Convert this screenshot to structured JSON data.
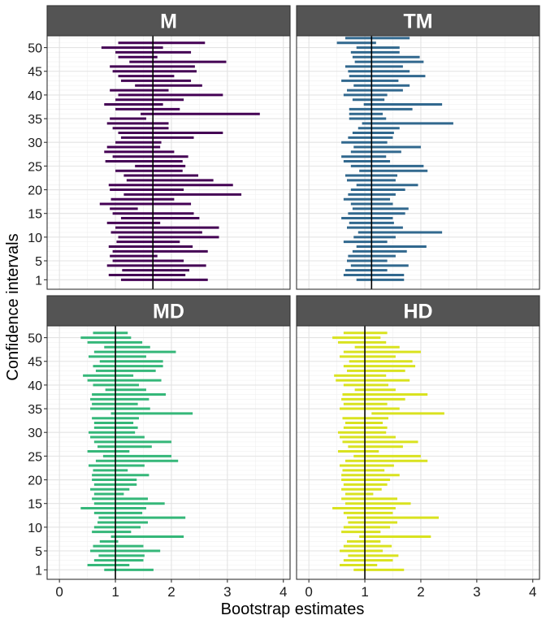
{
  "chart_data": {
    "type": "interval",
    "xlabel": "Bootstrap estimates",
    "ylabel": "Confidence intervals",
    "xlim": [
      0,
      4
    ],
    "ylim": [
      1,
      50
    ],
    "x_ticks": [
      0,
      1,
      2,
      3,
      4
    ],
    "y_ticks": [
      1,
      5,
      10,
      15,
      20,
      25,
      30,
      35,
      40,
      45,
      50
    ],
    "grid": true,
    "layout": "2x2 facet grid",
    "panels": [
      {
        "name": "M",
        "color": "#440154",
        "reference_line": 1.67,
        "intervals": [
          [
            1.1,
            2.65
          ],
          [
            0.88,
            2.25
          ],
          [
            1.12,
            2.32
          ],
          [
            0.85,
            2.62
          ],
          [
            0.95,
            2.22
          ],
          [
            0.9,
            1.75
          ],
          [
            0.95,
            2.65
          ],
          [
            0.88,
            2.38
          ],
          [
            1.02,
            2.15
          ],
          [
            1.05,
            2.85
          ],
          [
            0.92,
            2.55
          ],
          [
            1.0,
            2.85
          ],
          [
            0.85,
            1.8
          ],
          [
            1.1,
            2.5
          ],
          [
            0.95,
            2.4
          ],
          [
            0.9,
            1.4
          ],
          [
            0.72,
            2.35
          ],
          [
            0.92,
            2.05
          ],
          [
            1.15,
            3.25
          ],
          [
            0.9,
            2.22
          ],
          [
            0.88,
            3.1
          ],
          [
            1.2,
            2.75
          ],
          [
            1.15,
            2.48
          ],
          [
            1.0,
            2.2
          ],
          [
            1.35,
            2.25
          ],
          [
            0.82,
            2.2
          ],
          [
            0.95,
            2.3
          ],
          [
            0.8,
            2.05
          ],
          [
            0.85,
            1.8
          ],
          [
            1.0,
            1.82
          ],
          [
            1.1,
            2.4
          ],
          [
            1.05,
            2.92
          ],
          [
            0.95,
            1.95
          ],
          [
            0.85,
            1.95
          ],
          [
            0.9,
            1.55
          ],
          [
            1.45,
            3.58
          ],
          [
            1.0,
            2.15
          ],
          [
            0.8,
            1.85
          ],
          [
            1.0,
            2.22
          ],
          [
            1.05,
            2.92
          ],
          [
            0.9,
            1.95
          ],
          [
            1.35,
            2.55
          ],
          [
            1.1,
            2.35
          ],
          [
            1.05,
            2.05
          ],
          [
            0.95,
            2.45
          ],
          [
            0.9,
            2.42
          ],
          [
            1.25,
            2.98
          ],
          [
            1.05,
            1.75
          ],
          [
            1.0,
            2.35
          ],
          [
            0.75,
            1.85
          ],
          [
            1.05,
            2.6
          ]
        ]
      },
      {
        "name": "TM",
        "color": "#31688E",
        "reference_line": 1.12,
        "intervals": [
          [
            0.85,
            1.7
          ],
          [
            0.62,
            1.7
          ],
          [
            0.65,
            1.4
          ],
          [
            0.75,
            1.78
          ],
          [
            0.68,
            1.4
          ],
          [
            0.7,
            1.55
          ],
          [
            0.78,
            1.75
          ],
          [
            0.85,
            2.1
          ],
          [
            0.62,
            1.4
          ],
          [
            0.8,
            1.55
          ],
          [
            0.88,
            2.38
          ],
          [
            0.68,
            1.68
          ],
          [
            0.72,
            1.52
          ],
          [
            0.58,
            1.5
          ],
          [
            0.7,
            1.72
          ],
          [
            0.78,
            1.78
          ],
          [
            0.75,
            1.5
          ],
          [
            0.62,
            1.45
          ],
          [
            0.7,
            1.55
          ],
          [
            0.75,
            1.72
          ],
          [
            0.85,
            1.95
          ],
          [
            0.68,
            1.55
          ],
          [
            0.65,
            1.58
          ],
          [
            0.9,
            2.12
          ],
          [
            0.75,
            2.05
          ],
          [
            0.62,
            1.45
          ],
          [
            0.58,
            1.38
          ],
          [
            0.75,
            1.65
          ],
          [
            0.8,
            2.0
          ],
          [
            0.58,
            1.4
          ],
          [
            0.7,
            1.5
          ],
          [
            0.78,
            1.52
          ],
          [
            0.88,
            1.62
          ],
          [
            0.95,
            2.58
          ],
          [
            0.72,
            1.38
          ],
          [
            0.72,
            1.32
          ],
          [
            0.72,
            1.85
          ],
          [
            0.98,
            2.38
          ],
          [
            0.78,
            1.35
          ],
          [
            0.62,
            1.4
          ],
          [
            0.68,
            1.68
          ],
          [
            0.8,
            1.8
          ],
          [
            0.58,
            1.6
          ],
          [
            0.72,
            2.08
          ],
          [
            0.7,
            1.8
          ],
          [
            0.65,
            1.68
          ],
          [
            0.82,
            2.05
          ],
          [
            0.78,
            1.98
          ],
          [
            0.75,
            1.62
          ],
          [
            0.85,
            1.62
          ],
          [
            0.5,
            1.2
          ],
          [
            0.65,
            1.8
          ]
        ]
      },
      {
        "name": "MD",
        "color": "#35B779",
        "reference_line": 1.0,
        "intervals": [
          [
            0.8,
            1.68
          ],
          [
            0.5,
            1.25
          ],
          [
            0.62,
            1.5
          ],
          [
            0.7,
            1.52
          ],
          [
            0.55,
            1.8
          ],
          [
            0.6,
            1.5
          ],
          [
            0.72,
            1.05
          ],
          [
            0.92,
            2.22
          ],
          [
            0.58,
            1.28
          ],
          [
            0.62,
            1.45
          ],
          [
            0.68,
            1.58
          ],
          [
            0.7,
            2.25
          ],
          [
            0.62,
            1.48
          ],
          [
            0.38,
            1.55
          ],
          [
            0.62,
            1.88
          ],
          [
            0.58,
            1.58
          ],
          [
            0.62,
            1.15
          ],
          [
            0.55,
            1.25
          ],
          [
            0.62,
            1.38
          ],
          [
            0.58,
            1.38
          ],
          [
            0.58,
            1.6
          ],
          [
            0.6,
            1.22
          ],
          [
            0.52,
            1.52
          ],
          [
            0.65,
            2.12
          ],
          [
            0.78,
            2.0
          ],
          [
            0.5,
            1.25
          ],
          [
            0.68,
            1.65
          ],
          [
            0.62,
            2.0
          ],
          [
            0.55,
            1.52
          ],
          [
            0.52,
            1.35
          ],
          [
            0.62,
            1.4
          ],
          [
            0.62,
            1.32
          ],
          [
            0.58,
            1.42
          ],
          [
            0.92,
            2.38
          ],
          [
            0.55,
            1.62
          ],
          [
            0.58,
            1.4
          ],
          [
            0.55,
            1.6
          ],
          [
            0.58,
            1.9
          ],
          [
            0.82,
            1.55
          ],
          [
            0.6,
            1.42
          ],
          [
            0.5,
            1.82
          ],
          [
            0.42,
            1.32
          ],
          [
            0.65,
            1.72
          ],
          [
            0.6,
            1.85
          ],
          [
            0.72,
            1.85
          ],
          [
            0.52,
            1.55
          ],
          [
            0.62,
            2.08
          ],
          [
            0.8,
            1.62
          ],
          [
            0.5,
            1.48
          ],
          [
            0.38,
            1.28
          ],
          [
            0.6,
            1.22
          ]
        ]
      },
      {
        "name": "HD",
        "color": "#D9E21F",
        "reference_line": 1.0,
        "intervals": [
          [
            0.8,
            1.7
          ],
          [
            0.55,
            1.22
          ],
          [
            0.62,
            1.5
          ],
          [
            0.7,
            1.6
          ],
          [
            0.55,
            1.32
          ],
          [
            0.62,
            1.48
          ],
          [
            0.68,
            1.28
          ],
          [
            0.9,
            2.18
          ],
          [
            0.58,
            1.28
          ],
          [
            0.62,
            1.45
          ],
          [
            0.7,
            1.58
          ],
          [
            0.68,
            2.32
          ],
          [
            0.62,
            1.5
          ],
          [
            0.42,
            1.55
          ],
          [
            0.65,
            1.82
          ],
          [
            0.58,
            1.58
          ],
          [
            0.65,
            1.15
          ],
          [
            0.58,
            1.3
          ],
          [
            0.62,
            1.4
          ],
          [
            0.58,
            1.45
          ],
          [
            0.58,
            1.62
          ],
          [
            0.6,
            1.35
          ],
          [
            0.55,
            1.52
          ],
          [
            0.65,
            2.12
          ],
          [
            0.8,
            2.0
          ],
          [
            0.52,
            1.25
          ],
          [
            0.7,
            1.68
          ],
          [
            0.6,
            1.95
          ],
          [
            0.55,
            1.55
          ],
          [
            0.52,
            1.38
          ],
          [
            0.62,
            1.4
          ],
          [
            0.65,
            1.32
          ],
          [
            0.6,
            1.42
          ],
          [
            1.12,
            2.42
          ],
          [
            0.55,
            1.62
          ],
          [
            0.62,
            1.4
          ],
          [
            0.58,
            1.72
          ],
          [
            0.6,
            2.12
          ],
          [
            0.82,
            1.55
          ],
          [
            0.62,
            1.42
          ],
          [
            0.48,
            1.8
          ],
          [
            0.45,
            1.38
          ],
          [
            0.68,
            1.72
          ],
          [
            0.62,
            1.9
          ],
          [
            0.72,
            1.85
          ],
          [
            0.55,
            1.55
          ],
          [
            0.62,
            2.0
          ],
          [
            0.82,
            1.62
          ],
          [
            0.52,
            1.38
          ],
          [
            0.42,
            1.28
          ],
          [
            0.62,
            1.4
          ]
        ]
      }
    ]
  }
}
